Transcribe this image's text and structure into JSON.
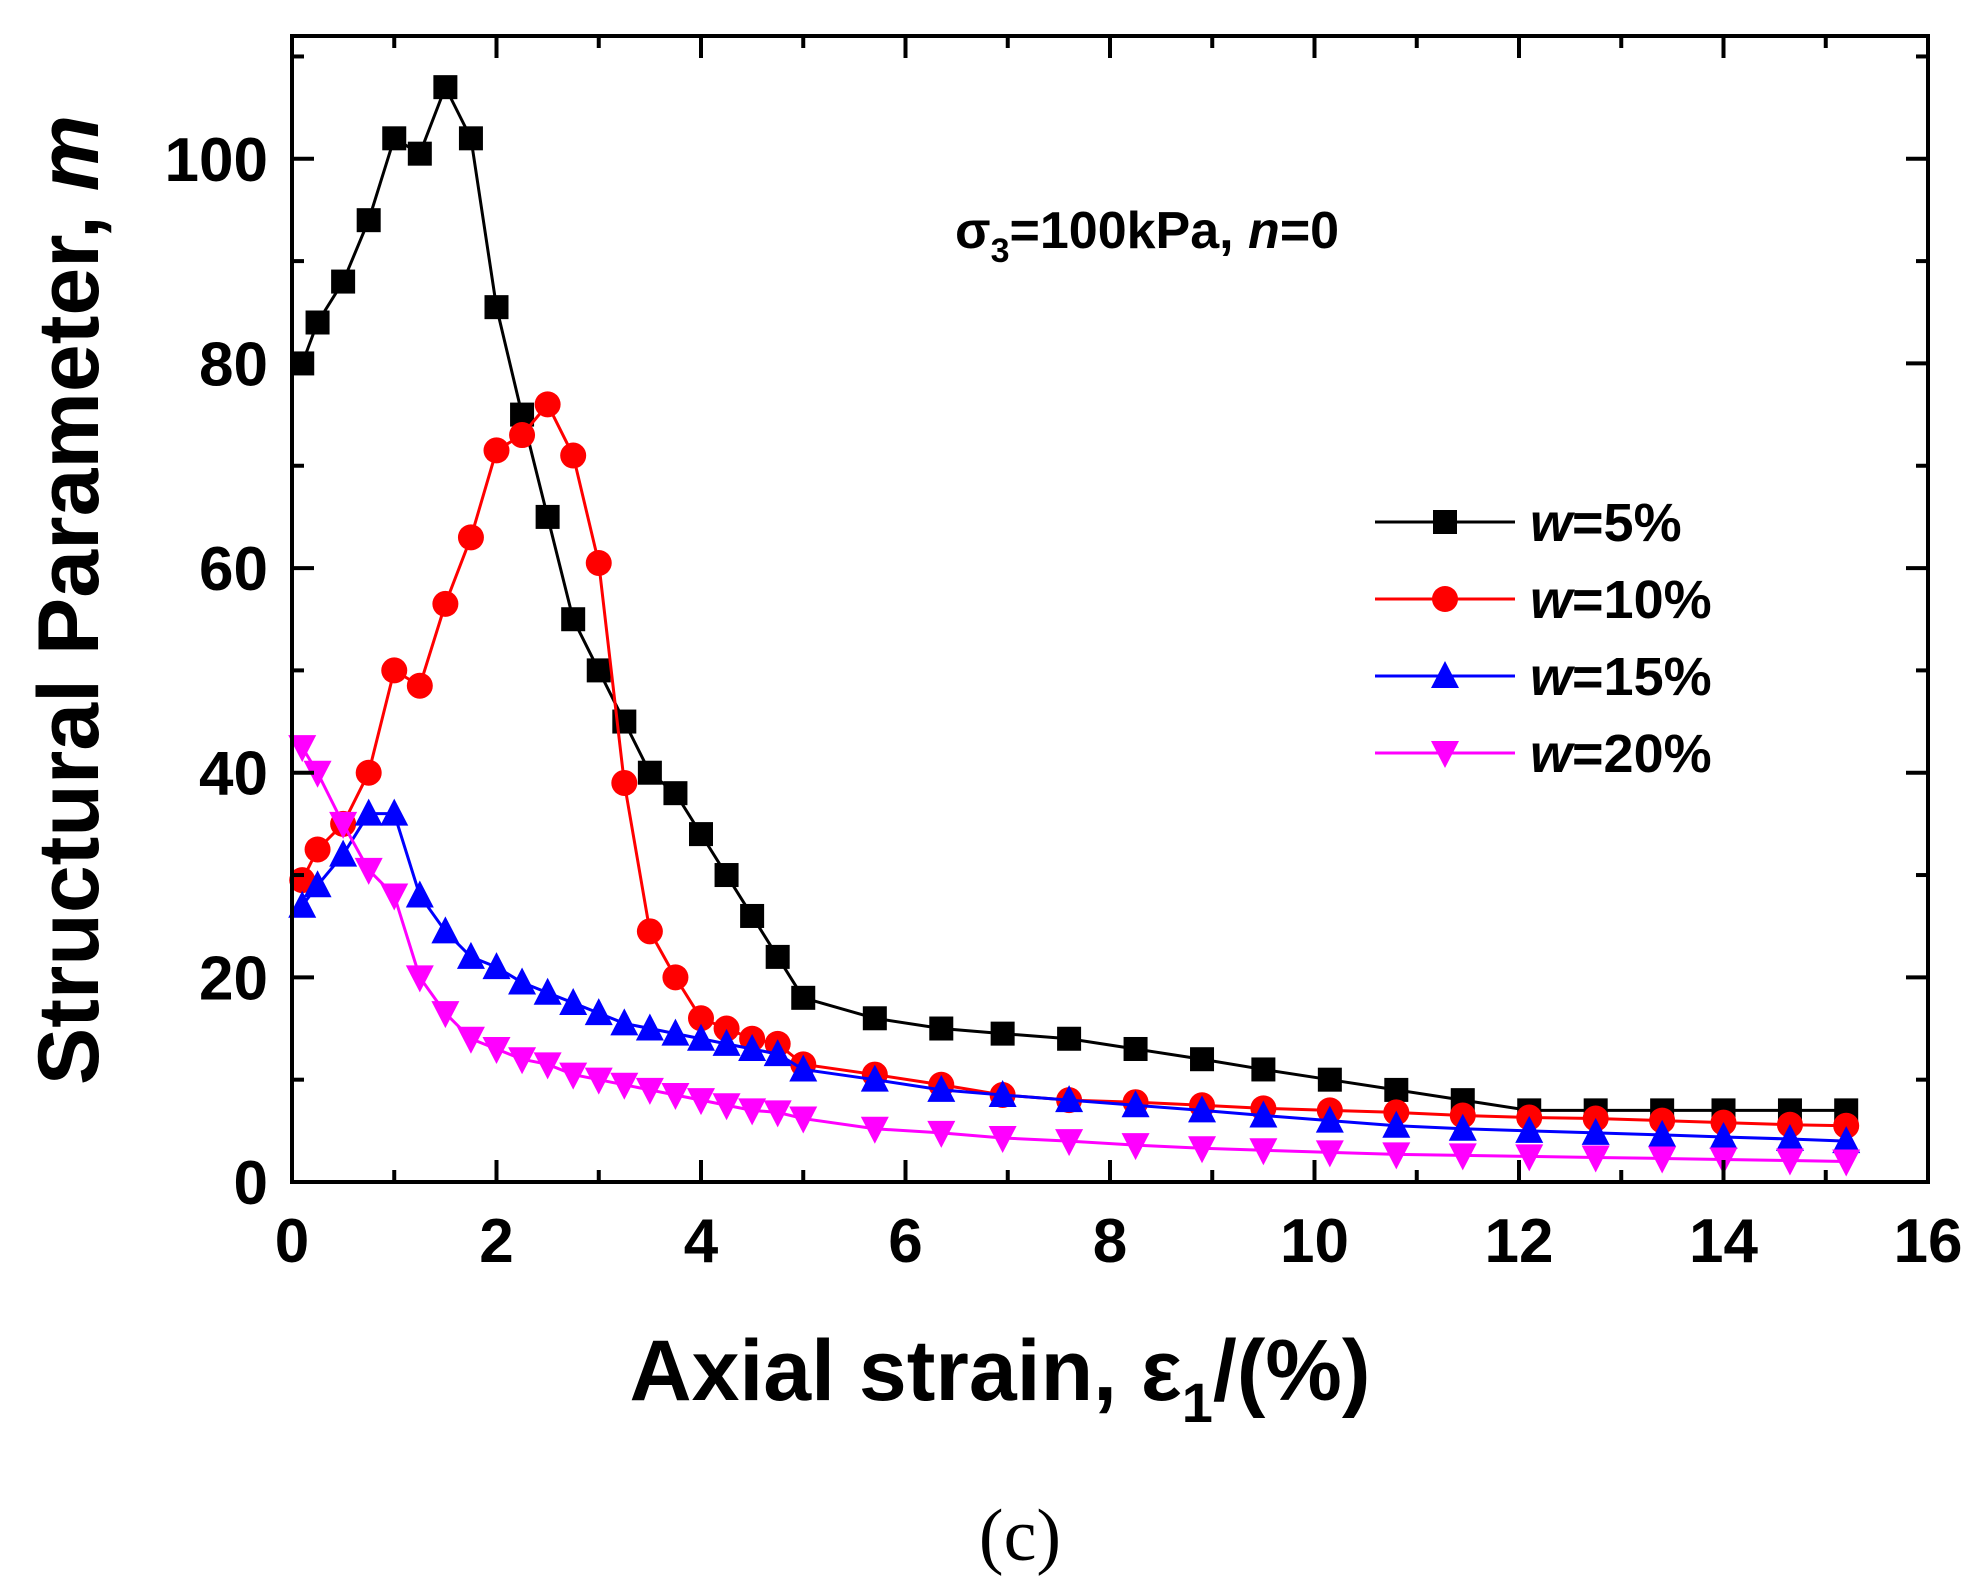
{
  "chart_data": {
    "type": "line",
    "xlabel": {
      "prefix": "Axial strain, ",
      "symbol": "ε",
      "sub": "1",
      "suffix": "/(%)"
    },
    "ylabel": {
      "text": "Structural Parameter, ",
      "italic": "m"
    },
    "xlim": [
      0,
      16
    ],
    "ylim": [
      0,
      112
    ],
    "xticks": [
      0,
      2,
      4,
      6,
      8,
      10,
      12,
      14,
      16
    ],
    "yticks": [
      0,
      20,
      40,
      60,
      80,
      100
    ],
    "annotation": {
      "symbol": "σ",
      "sub": "3",
      "mid": "=100kPa, ",
      "italic": "n",
      "end": "=0"
    },
    "panel_label": "(c)",
    "legend_position": "right",
    "series": [
      {
        "name": "w=5%",
        "label_italic": "w",
        "label_rest": "=5%",
        "color": "#000000",
        "marker": "square",
        "x": [
          0.1,
          0.25,
          0.5,
          0.75,
          1.0,
          1.25,
          1.5,
          1.75,
          2.0,
          2.25,
          2.5,
          2.75,
          3.0,
          3.25,
          3.5,
          3.75,
          4.0,
          4.25,
          4.5,
          4.75,
          5.0,
          5.7,
          6.35,
          6.95,
          7.6,
          8.25,
          8.9,
          9.5,
          10.15,
          10.8,
          11.45,
          12.1,
          12.75,
          13.4,
          14.0,
          14.65,
          15.2
        ],
        "y": [
          80,
          84,
          88,
          94,
          102,
          100.5,
          107,
          102,
          85.5,
          75,
          65,
          55,
          50,
          45,
          40,
          38,
          34,
          30,
          26,
          22,
          18,
          16,
          15,
          14.5,
          14,
          13,
          12,
          11,
          10,
          9,
          8,
          7,
          7,
          7,
          7,
          7,
          7
        ]
      },
      {
        "name": "w=10%",
        "label_italic": "w",
        "label_rest": "=10%",
        "color": "#ff0000",
        "marker": "circle",
        "x": [
          0.1,
          0.25,
          0.5,
          0.75,
          1.0,
          1.25,
          1.5,
          1.75,
          2.0,
          2.25,
          2.5,
          2.75,
          3.0,
          3.25,
          3.5,
          3.75,
          4.0,
          4.25,
          4.5,
          4.75,
          5.0,
          5.7,
          6.35,
          6.95,
          7.6,
          8.25,
          8.9,
          9.5,
          10.15,
          10.8,
          11.45,
          12.1,
          12.75,
          13.4,
          14.0,
          14.65,
          15.2
        ],
        "y": [
          29.5,
          32.5,
          35,
          40,
          50,
          48.5,
          56.5,
          63,
          71.5,
          73,
          76,
          71,
          60.5,
          39,
          24.5,
          20,
          16,
          15,
          14,
          13.5,
          11.5,
          10.5,
          9.5,
          8.5,
          8,
          7.8,
          7.5,
          7.2,
          7,
          6.8,
          6.5,
          6.3,
          6.2,
          6,
          5.8,
          5.6,
          5.5
        ]
      },
      {
        "name": "w=15%",
        "label_italic": "w",
        "label_rest": "=15%",
        "color": "#0000ff",
        "marker": "triangle-up",
        "x": [
          0.1,
          0.25,
          0.5,
          0.75,
          1.0,
          1.25,
          1.5,
          1.75,
          2.0,
          2.25,
          2.5,
          2.75,
          3.0,
          3.25,
          3.5,
          3.75,
          4.0,
          4.25,
          4.5,
          4.75,
          5.0,
          5.7,
          6.35,
          6.95,
          7.6,
          8.25,
          8.9,
          9.5,
          10.15,
          10.8,
          11.45,
          12.1,
          12.75,
          13.4,
          14.0,
          14.65,
          15.2
        ],
        "y": [
          27,
          29,
          32,
          36,
          36,
          28,
          24.5,
          22,
          21,
          19.5,
          18.5,
          17.5,
          16.5,
          15.5,
          15,
          14.5,
          14,
          13.5,
          13,
          12.5,
          11,
          10,
          9,
          8.5,
          8,
          7.5,
          7,
          6.5,
          6,
          5.5,
          5.2,
          5,
          4.8,
          4.6,
          4.4,
          4.2,
          4
        ]
      },
      {
        "name": "w=20%",
        "label_italic": "w",
        "label_rest": "=20%",
        "color": "#ff00ff",
        "marker": "triangle-down",
        "x": [
          0.1,
          0.25,
          0.5,
          0.75,
          1.0,
          1.25,
          1.5,
          1.75,
          2.0,
          2.25,
          2.5,
          2.75,
          3.0,
          3.25,
          3.5,
          3.75,
          4.0,
          4.25,
          4.5,
          4.75,
          5.0,
          5.7,
          6.35,
          6.95,
          7.6,
          8.25,
          8.9,
          9.5,
          10.15,
          10.8,
          11.45,
          12.1,
          12.75,
          13.4,
          14.0,
          14.65,
          15.2
        ],
        "y": [
          42.5,
          40,
          35,
          30.5,
          28,
          20,
          16.5,
          14,
          13,
          12,
          11.5,
          10.5,
          10,
          9.5,
          9,
          8.5,
          8,
          7.5,
          7,
          6.8,
          6.2,
          5.2,
          4.8,
          4.3,
          4,
          3.6,
          3.3,
          3.1,
          2.9,
          2.7,
          2.6,
          2.5,
          2.4,
          2.3,
          2.2,
          2.1,
          2
        ]
      }
    ]
  }
}
